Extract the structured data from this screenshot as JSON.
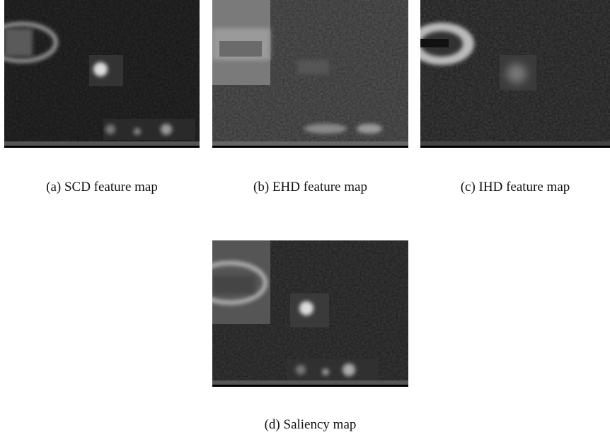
{
  "figures": [
    {
      "caption": "(a) SCD feature map"
    },
    {
      "caption": "(b) EHD feature map"
    },
    {
      "caption": "(c) IHD feature map"
    },
    {
      "caption": "(d) Saliency map"
    }
  ]
}
